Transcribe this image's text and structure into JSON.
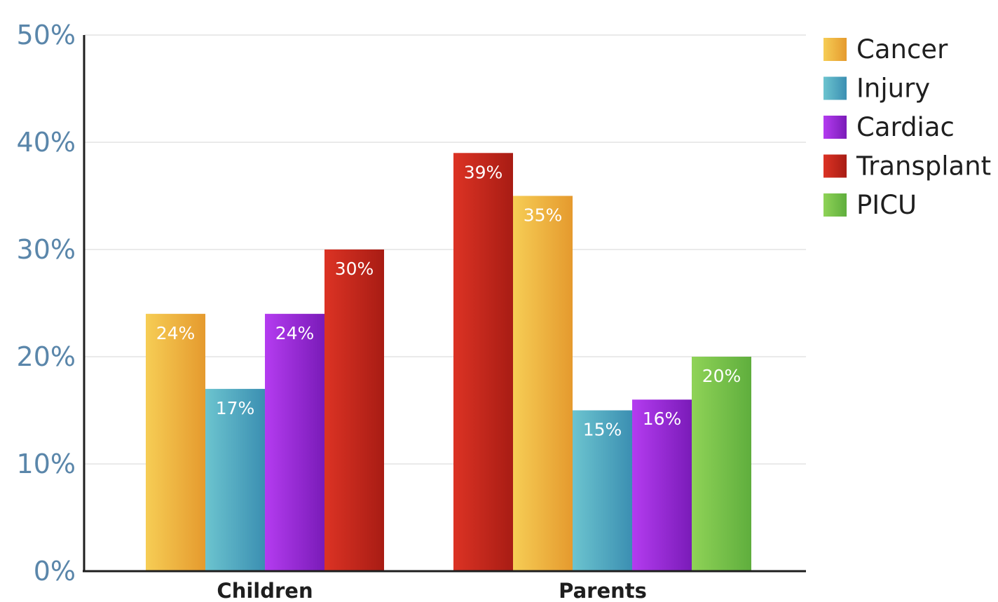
{
  "chart_data": {
    "type": "bar",
    "categories": [
      "Children",
      "Parents"
    ],
    "ylim": [
      0,
      50
    ],
    "yticks": [
      "0%",
      "10%",
      "20%",
      "30%",
      "40%",
      "50%"
    ],
    "grid": true,
    "legend": "right",
    "legend_entries": [
      {
        "name": "Cancer",
        "color": "#efb33a"
      },
      {
        "name": "Injury",
        "color": "#4aa3bd"
      },
      {
        "name": "Cardiac",
        "color": "#9a27d6"
      },
      {
        "name": "Transplant",
        "color": "#c42618"
      },
      {
        "name": "PICU",
        "color": "#7cc24a"
      }
    ],
    "groups": [
      {
        "category": "Children",
        "bars": [
          {
            "series": "Cancer",
            "value": 24,
            "label": "24%"
          },
          {
            "series": "Injury",
            "value": 17,
            "label": "17%"
          },
          {
            "series": "Cardiac",
            "value": 24,
            "label": "24%"
          },
          {
            "series": "Transplant",
            "value": 30,
            "label": "30%"
          }
        ]
      },
      {
        "category": "Parents",
        "bars": [
          {
            "series": "Transplant",
            "value": 39,
            "label": "39%"
          },
          {
            "series": "Cancer",
            "value": 35,
            "label": "35%"
          },
          {
            "series": "Injury",
            "value": 15,
            "label": "15%"
          },
          {
            "series": "Cardiac",
            "value": 16,
            "label": "16%"
          },
          {
            "series": "PICU",
            "value": 20,
            "label": "20%"
          }
        ]
      }
    ]
  }
}
